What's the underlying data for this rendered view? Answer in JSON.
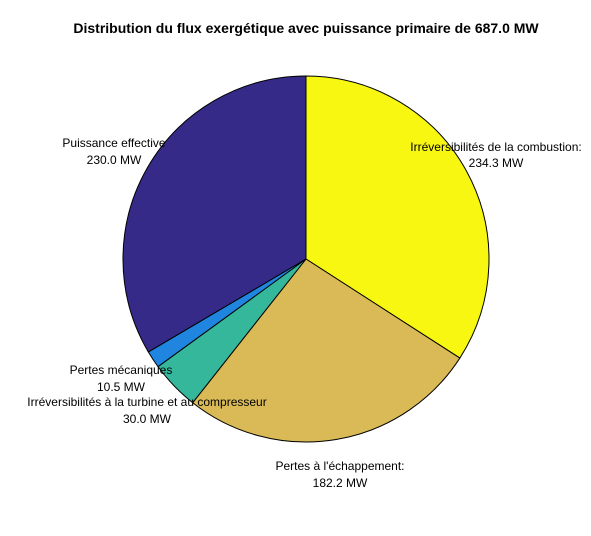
{
  "chart_data": {
    "type": "pie",
    "title": "Distribution du flux exergétique avec puissance primaire de 687.0  MW",
    "unit": "MW",
    "slices": [
      {
        "name": "Irréversibilités de la combustion:",
        "value": 234.3,
        "value_label": "234.3 MW",
        "color": "#f7f711"
      },
      {
        "name": "Pertes à l'échappement:",
        "value": 182.2,
        "value_label": "182.2 MW",
        "color": "#d9ba56"
      },
      {
        "name": "Irréversibilités à la turbine et au compresseur",
        "value": 30.0,
        "value_label": "30.0 MW",
        "color": "#35b79c"
      },
      {
        "name": "Pertes mécaniques",
        "value": 10.5,
        "value_label": "10.5 MW",
        "color": "#1f85de"
      },
      {
        "name": "Puissance effective",
        "value": 230.0,
        "value_label": "230.0 MW",
        "color": "#352a87"
      }
    ],
    "start_angle_deg": 90,
    "direction": "clockwise",
    "edgecolor": "#000000"
  }
}
